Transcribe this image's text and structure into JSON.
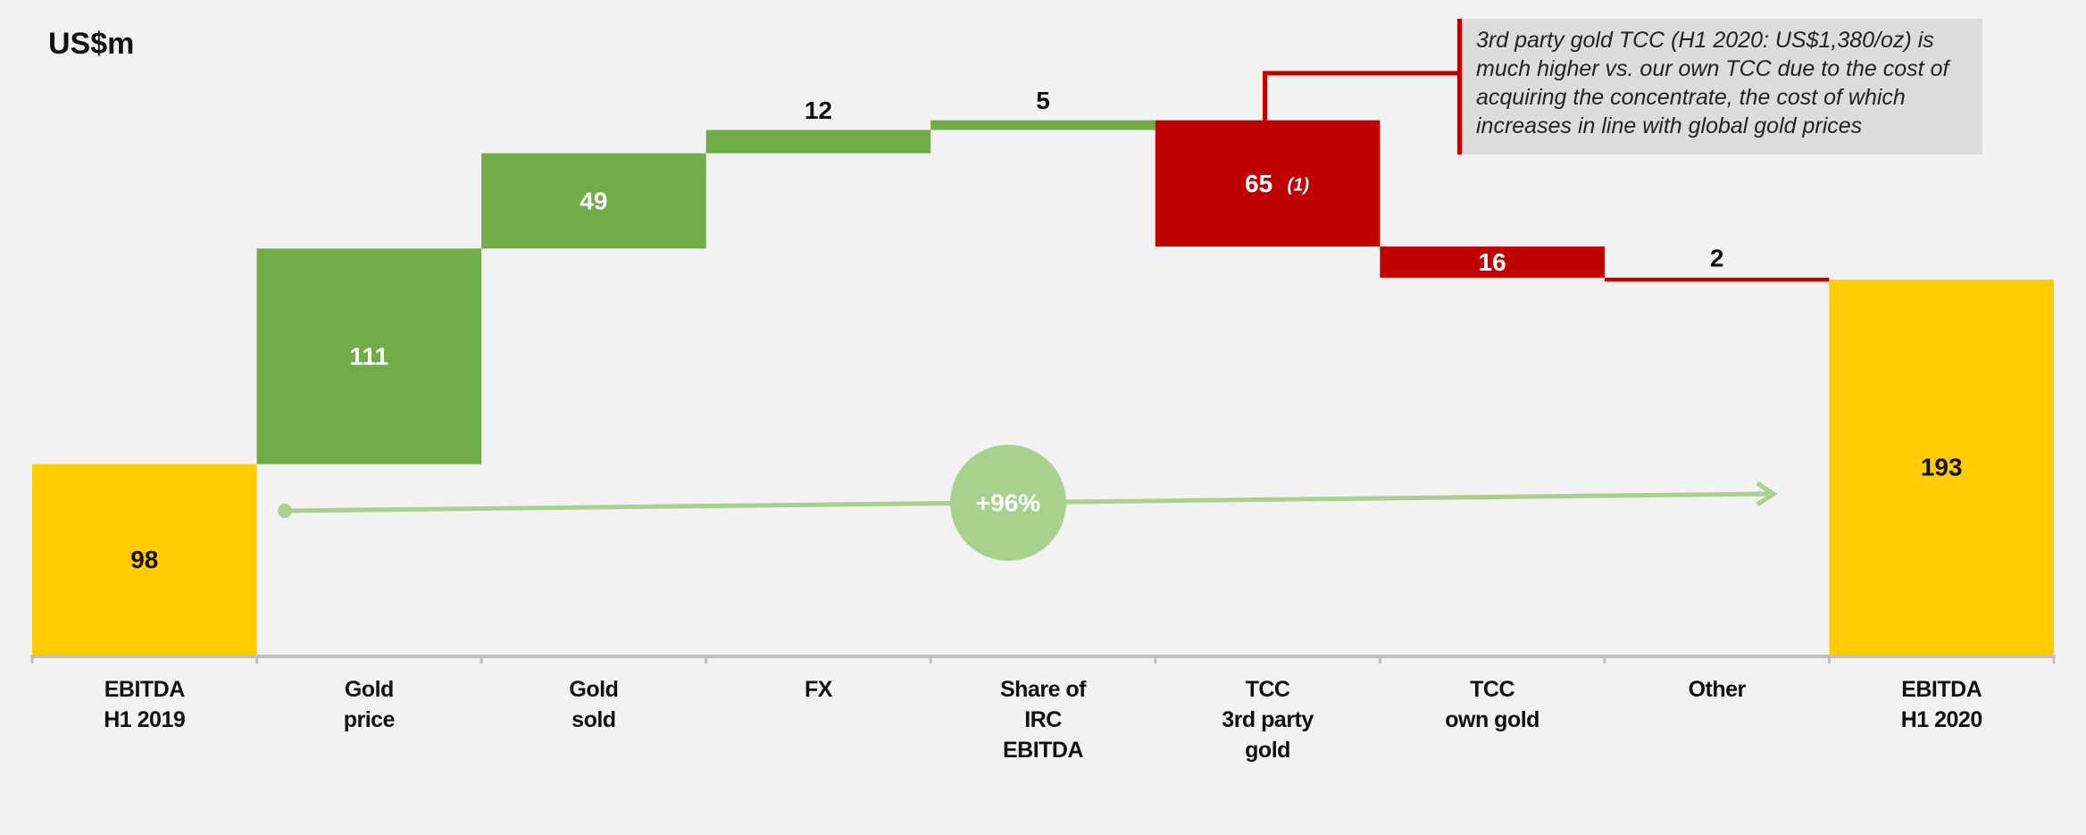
{
  "chart_data": {
    "type": "waterfall",
    "title": "US$m",
    "categories": [
      "EBITDA\nH1 2019",
      "Gold\nprice",
      "Gold\nsold",
      "FX",
      "Share of\nIRC\nEBITDA",
      "TCC\n3rd party\ngold",
      "TCC\nown gold",
      "Other",
      "EBITDA\nH1 2020"
    ],
    "values": [
      98,
      111,
      49,
      12,
      5,
      -65,
      -16,
      -2,
      193
    ],
    "value_labels": [
      "98",
      "111",
      "49",
      "12",
      "5",
      "65",
      "16",
      "2",
      "193"
    ],
    "color_total": "#ffcc00",
    "color_increase": "#70ad47",
    "color_decrease": "#c00000",
    "ylim": [
      0,
      330
    ],
    "growth_label": "+96%",
    "callout": "3rd party gold TCC (H1 2020: US$1,380/oz) is much higher vs. our own TCC due to the cost of acquiring the concentrate, the cost of which increases in line with global gold prices",
    "callout_category": "TCC\n3rd party\ngold",
    "footnote": "(1)"
  }
}
